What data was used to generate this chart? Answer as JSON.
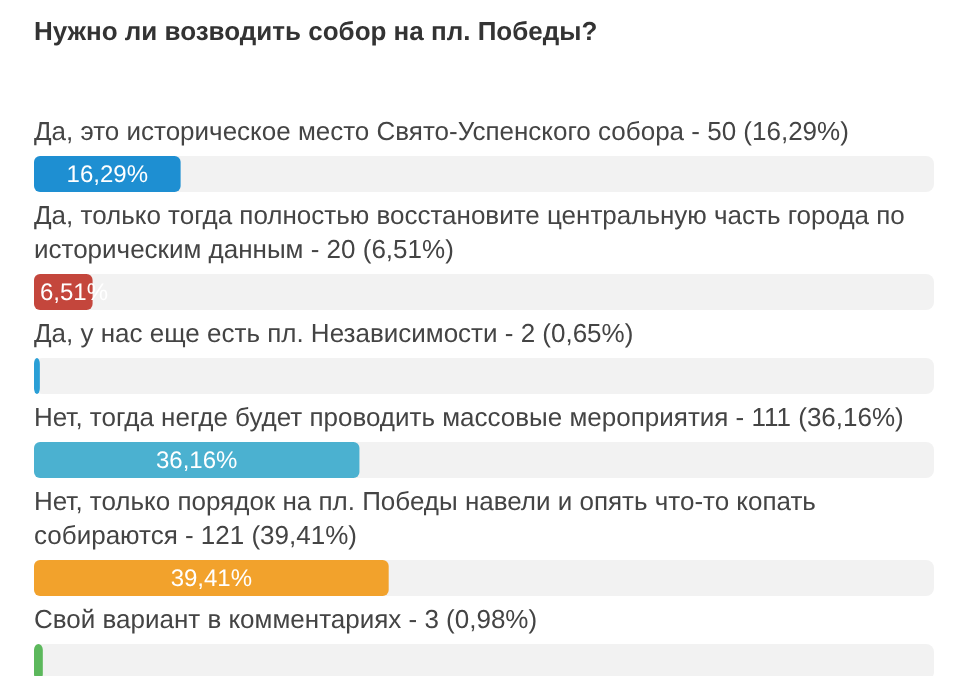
{
  "chart_data": {
    "type": "bar",
    "orientation": "horizontal",
    "title": "Нужно ли возводить собор на пл. Победы?",
    "categories": [
      "Да, это историческое место Свято-Успенского собора - 50 (16,29%)",
      "Да, только тогда полностью восстановите центральную часть города по историческим данным - 20 (6,51%)",
      "Да, у нас еще есть пл. Независимости - 2 (0,65%)",
      "Нет, тогда негде будет проводить массовые мероприятия - 111 (36,16%)",
      "Нет, только порядок на пл. Победы навели и опять что-то копать собираются - 121 (39,41%)",
      "Свой вариант в комментариях - 3 (0,98%)"
    ],
    "values": [
      16.29,
      6.51,
      0.65,
      36.16,
      39.41,
      0.98
    ],
    "value_labels": [
      "16,29%",
      "6,51%",
      null,
      "36,16%",
      "39,41%",
      null
    ],
    "colors": [
      "#1e8fd2",
      "#c4463c",
      "#2a9fd6",
      "#4bb1d0",
      "#f2a22c",
      "#5cb85c"
    ],
    "xlim": [
      0,
      100
    ]
  }
}
